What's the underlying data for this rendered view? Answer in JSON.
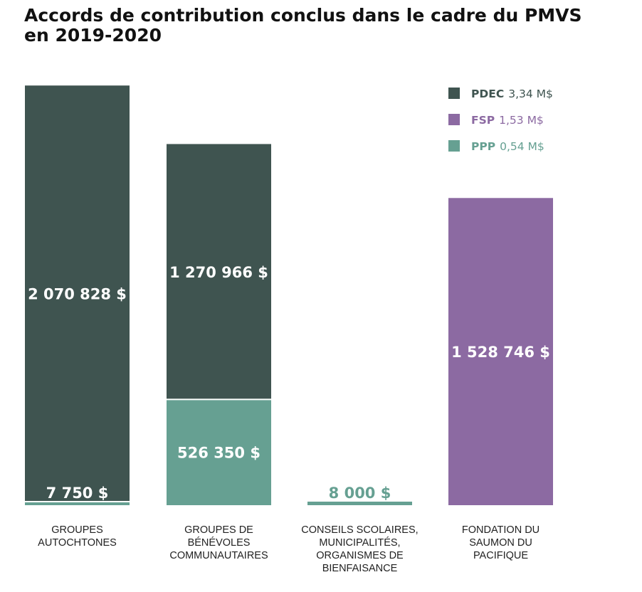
{
  "chart_data": {
    "type": "bar",
    "stacked": true,
    "title_lines": [
      "Accords de contribution conclus dans le cadre du PMVS",
      "en 2019-2020"
    ],
    "categories": [
      [
        "GROUPES",
        "AUTOCHTONES"
      ],
      [
        "GROUPES DE",
        "BÉNÉVOLES",
        "COMMUNAUTAIRES"
      ],
      [
        "CONSEILS SCOLAIRES,",
        "MUNICIPALITÉS,",
        "ORGANISMES DE",
        "BIENFAISANCE"
      ],
      [
        "FONDATION DU",
        "SAUMON DU",
        "PACIFIQUE"
      ]
    ],
    "series": [
      {
        "name": "PPP",
        "total": "0,54 M$",
        "color": "#66a092",
        "values": [
          7750,
          526350,
          8000,
          0
        ],
        "labels": [
          "7 750 $",
          "526 350 $",
          "8 000 $",
          ""
        ]
      },
      {
        "name": "PDEC",
        "total": "3,34 M$",
        "color": "#3f5450",
        "values": [
          2070828,
          1270966,
          0,
          0
        ],
        "labels": [
          "2 070 828 $",
          "1 270 966 $",
          "",
          ""
        ]
      },
      {
        "name": "FSP",
        "total": "1,53 M$",
        "color": "#8c6aa2",
        "values": [
          0,
          0,
          0,
          1528746
        ],
        "labels": [
          "",
          "",
          "",
          "1 528 746 $"
        ]
      }
    ],
    "legend_order": [
      "PDEC",
      "FSP",
      "PPP"
    ],
    "legend_position": "top-right",
    "ylim": [
      0,
      2078578
    ],
    "grid": false
  }
}
